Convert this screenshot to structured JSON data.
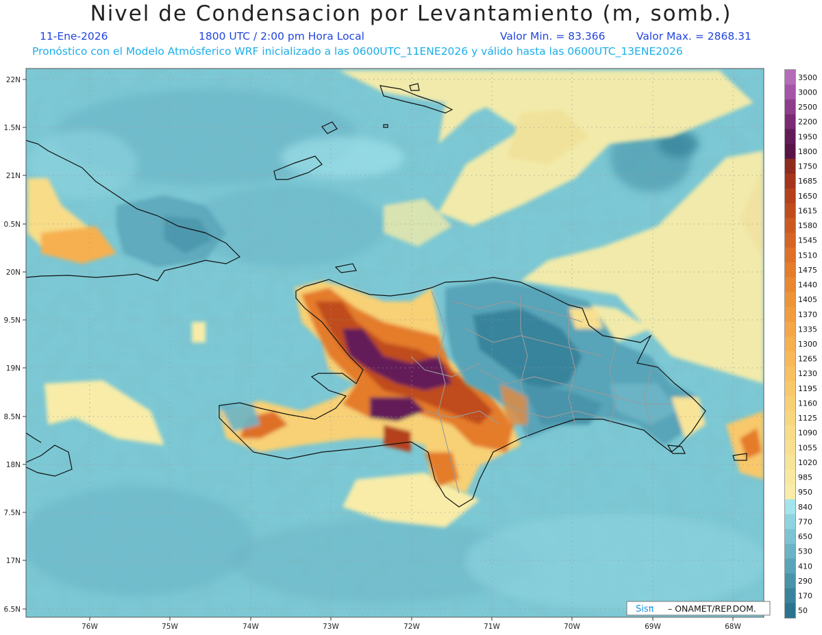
{
  "header": {
    "title": "Nivel de Condensacion por Levantamiento (m, somb.)",
    "date": "11-Ene-2026",
    "time": "1800 UTC / 2:00 pm Hora Local",
    "min": "Valor Min. = 83.366",
    "max": "Valor Max. = 2868.31",
    "info": "Pronóstico con el Modelo Atmósferico WRF inicializado a las 0600UTC_11ENE2026 y válido hasta las  0600UTC_13ENE2026"
  },
  "axes": {
    "lat_labels": [
      "22N",
      "1.5N",
      "21N",
      "0.5N",
      "20N",
      "9.5N",
      "19N",
      "8.5N",
      "18N",
      "7.5N",
      "17N",
      "6.5N"
    ],
    "lon_labels": [
      "76W",
      "75W",
      "74W",
      "73W",
      "72W",
      "71W",
      "70W",
      "69W",
      "68W"
    ]
  },
  "colorbar": {
    "levels": [
      "3500",
      "3000",
      "2500",
      "2200",
      "1950",
      "1800",
      "1750",
      "1685",
      "1650",
      "1615",
      "1580",
      "1545",
      "1510",
      "1475",
      "1440",
      "1405",
      "1370",
      "1335",
      "1300",
      "1265",
      "1230",
      "1195",
      "1160",
      "1125",
      "1090",
      "1055",
      "1020",
      "985",
      "950",
      "840",
      "770",
      "650",
      "530",
      "410",
      "290",
      "170",
      "50"
    ],
    "colors": [
      "#b46cb8",
      "#a455a8",
      "#8e3c8c",
      "#7a2a74",
      "#641a58",
      "#581446",
      "#8e2a1e",
      "#a4341c",
      "#b4401c",
      "#c04c1c",
      "#cc5a20",
      "#d66424",
      "#de7028",
      "#e47c2c",
      "#ea8832",
      "#ee9438",
      "#f29c40",
      "#f4a648",
      "#f6b050",
      "#f8b858",
      "#f8c060",
      "#f8c86a",
      "#f8d074",
      "#f8d67e",
      "#f8dc88",
      "#f8e090",
      "#f8e498",
      "#f8e8a0",
      "#f8eca8",
      "#a4e4ec",
      "#8ed4e0",
      "#7cc4d4",
      "#6ab4c6",
      "#58a4b8",
      "#4894aa",
      "#38849c",
      "#2a748e"
    ]
  },
  "credit": {
    "logo": "Sisπ",
    "text": "– ONAMET/REP.DOM."
  }
}
